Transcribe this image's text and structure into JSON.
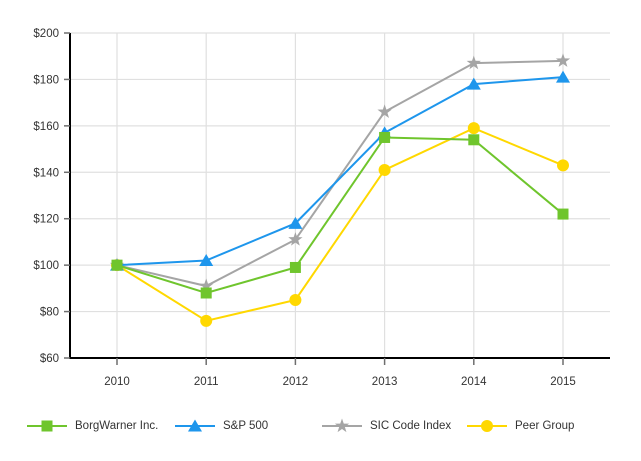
{
  "chart_data": {
    "type": "line",
    "title": "",
    "xlabel": "",
    "ylabel": "",
    "x_labels": [
      "2010",
      "2011",
      "2012",
      "2013",
      "2014",
      "2015"
    ],
    "y_ticks": [
      "$60",
      "$80",
      "$100",
      "$120",
      "$140",
      "$160",
      "$180",
      "$200"
    ],
    "ylim": [
      60,
      200
    ],
    "y_step": 20,
    "grid": true,
    "grid_color": "#e0e0e0",
    "axis_color": "#000000",
    "tick_color": "#6e6e6e",
    "label_color": "#333333",
    "legend_position": "bottom",
    "series": [
      {
        "name": "BorgWarner Inc.",
        "marker": "square",
        "color": "#6fc52d",
        "values": [
          100,
          88,
          99,
          155,
          154,
          122
        ]
      },
      {
        "name": "S&P 500",
        "marker": "triangle",
        "color": "#1e96ec",
        "values": [
          100,
          102,
          118,
          157,
          178,
          181
        ]
      },
      {
        "name": "SIC Code Index",
        "marker": "star",
        "color": "#a5a5a5",
        "values": [
          100,
          91,
          111,
          166,
          187,
          188
        ]
      },
      {
        "name": "Peer Group",
        "marker": "circle",
        "color": "#ffd800",
        "values": [
          100,
          76,
          85,
          141,
          159,
          143
        ]
      }
    ]
  }
}
